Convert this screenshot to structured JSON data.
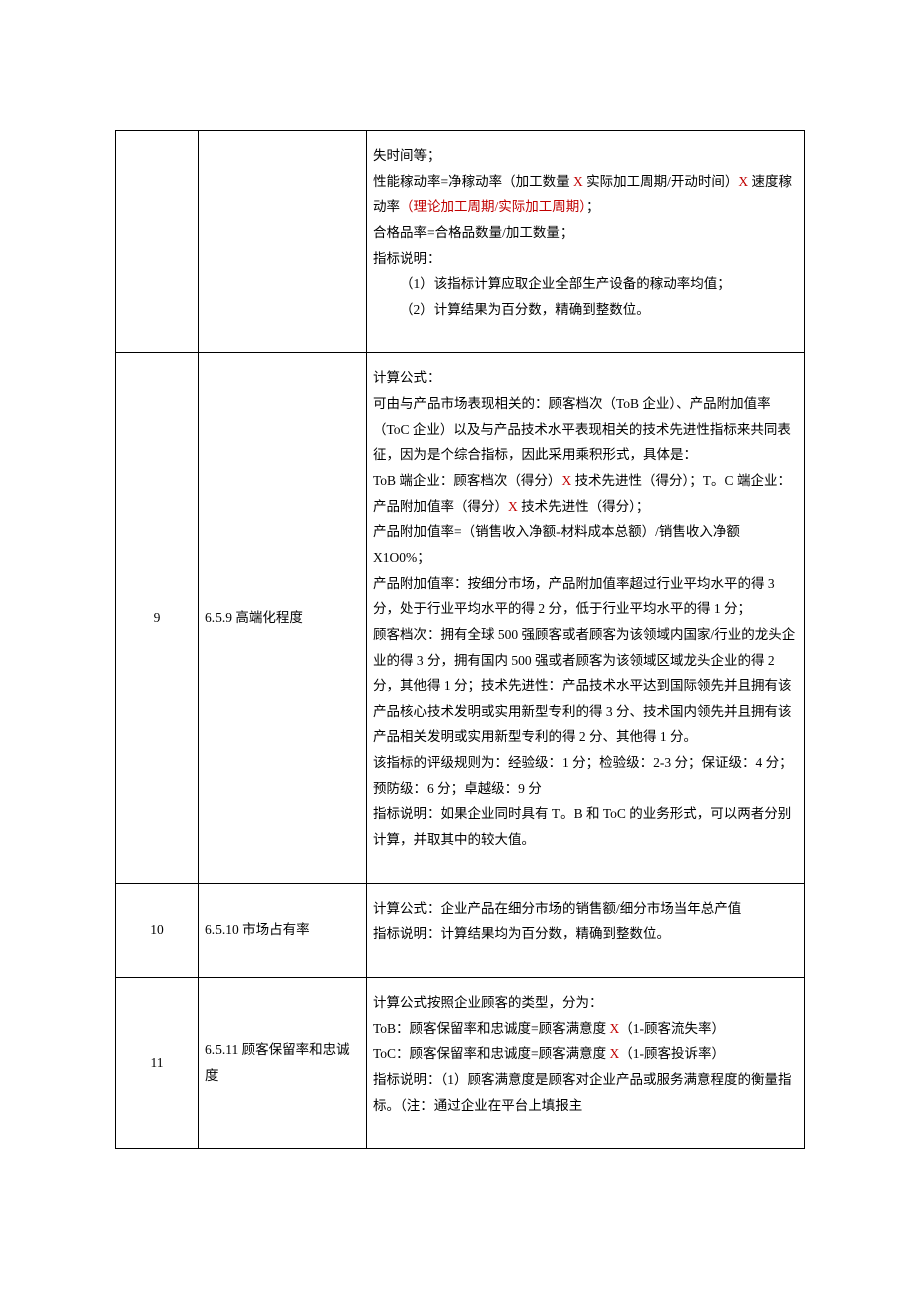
{
  "rows": [
    {
      "num": "",
      "title": "",
      "desc_html": "失时间等；<br>性能稼动率=净稼动率（加工数量 <span class=\"red\">X</span> 实际加工周期/开动时间）<span class=\"red\">X</span> 速度稼动率<span class=\"red\">（理论加工周期/实际加工周期）</span>；<br>合格品率=合格品数量/加工数量；<br>指标说明：<br><span class=\"indent\">（1）该指标计算应取企业全部生产设备的稼动率均值；</span><span class=\"indent\">（2）计算结果为百分数，精确到整数位。</span>"
    },
    {
      "num": "9",
      "title": "6.5.9 高端化程度",
      "desc_html": "计算公式：<br>可由与产品市场表现相关的：顾客档次（ToB 企业）、产品附加值率（ToC 企业）以及与产品技术水平表现相关的技术先进性指标来共同表征，因为是个综合指标，因此采用乘积形式，具体是：<br>ToB 端企业：顾客档次（得分）<span class=\"red\">X</span> 技术先进性（得分）；T。C 端企业：产品附加值率（得分）<span class=\"red\">X</span> 技术先进性（得分）；<br>产品附加值率=（销售收入净额-材料成本总额）/销售收入净额 X1O0%；<br>产品附加值率：按细分市场，产品附加值率超过行业平均水平的得 3 分，处于行业平均水平的得 2 分，低于行业平均水平的得 1 分；<br>顾客档次：拥有全球 500 强顾客或者顾客为该领域内国家/行业的龙头企业的得 3 分，拥有国内 500 强或者顾客为该领域区域龙头企业的得 2 分，其他得 1 分；技术先进性：产品技术水平达到国际领先并且拥有该产品核心技术发明或实用新型专利的得 3 分、技术国内领先并且拥有该产品相关发明或实用新型专利的得 2 分、其他得 1 分。<br>该指标的评级规则为：经验级：1 分；检验级：2-3 分；保证级：4 分；预防级：6 分；卓越级：9 分<br>指标说明：如果企业同时具有 T。B 和 ToC 的业务形式，可以两者分别计算，并取其中的较大值。"
    },
    {
      "num": "10",
      "title": "6.5.10 市场占有率",
      "desc_html": "计算公式：企业产品在细分市场的销售额/细分市场当年总产值<br>指标说明：计算结果均为百分数，精确到整数位。"
    },
    {
      "num": "11",
      "title": "6.5.11 顾客保留率和忠诚度",
      "desc_html": "计算公式按照企业顾客的类型，分为：<br>ToB：顾客保留率和忠诚度=顾客满意度 <span class=\"red\">X</span>（1-顾客流失率）<br>ToC：顾客保留率和忠诚度=顾客满意度 <span class=\"red\">X</span>（1-顾客投诉率）<br>指标说明：（1）顾客满意度是顾客对企业产品或服务满意程度的衡量指标。（注：通过企业在平台上填报主"
    }
  ]
}
